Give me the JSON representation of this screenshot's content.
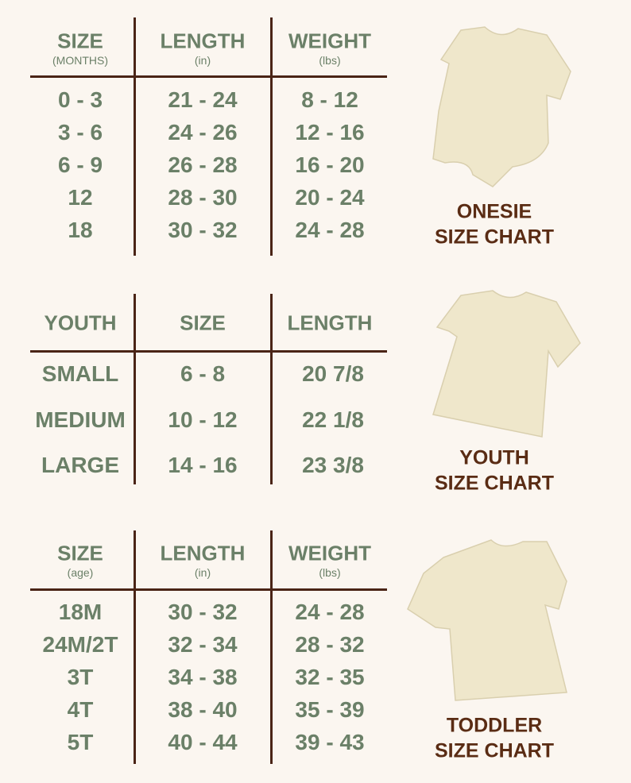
{
  "colors": {
    "text": "#6b8068",
    "lines": "#4a2416",
    "title": "#5a2c14",
    "background": "#fbf6f0",
    "garment": "#f3ecd3"
  },
  "onesie": {
    "headers": [
      {
        "main": "SIZE",
        "sub": "(MONTHS)"
      },
      {
        "main": "LENGTH",
        "sub": "(in)"
      },
      {
        "main": "WEIGHT",
        "sub": "(lbs)"
      }
    ],
    "rows": [
      [
        "0 - 3",
        "21 - 24",
        "8 - 12"
      ],
      [
        "3 - 6",
        "24 - 26",
        "12 - 16"
      ],
      [
        "6 - 9",
        "26 - 28",
        "16 - 20"
      ],
      [
        "12",
        "28 - 30",
        "20 - 24"
      ],
      [
        "18",
        "30 - 32",
        "24 - 28"
      ]
    ],
    "title_line1": "ONESIE",
    "title_line2": "SIZE CHART"
  },
  "youth": {
    "headers": [
      {
        "main": "YOUTH"
      },
      {
        "main": "SIZE"
      },
      {
        "main": "LENGTH"
      }
    ],
    "rows": [
      [
        "SMALL",
        "6 - 8",
        "20 7/8"
      ],
      [
        "MEDIUM",
        "10 - 12",
        "22 1/8"
      ],
      [
        "LARGE",
        "14 - 16",
        "23 3/8"
      ]
    ],
    "title_line1": "YOUTH",
    "title_line2": "SIZE CHART"
  },
  "toddler": {
    "headers": [
      {
        "main": "SIZE",
        "sub": "(age)"
      },
      {
        "main": "LENGTH",
        "sub": "(in)"
      },
      {
        "main": "WEIGHT",
        "sub": "(lbs)"
      }
    ],
    "rows": [
      [
        "18M",
        "30 - 32",
        "24 - 28"
      ],
      [
        "24M/2T",
        "32 - 34",
        "28 - 32"
      ],
      [
        "3T",
        "34 - 38",
        "32 - 35"
      ],
      [
        "4T",
        "38 - 40",
        "35 - 39"
      ],
      [
        "5T",
        "40 - 44",
        "39 - 43"
      ]
    ],
    "title_line1": "TODDLER",
    "title_line2": "SIZE CHART"
  }
}
